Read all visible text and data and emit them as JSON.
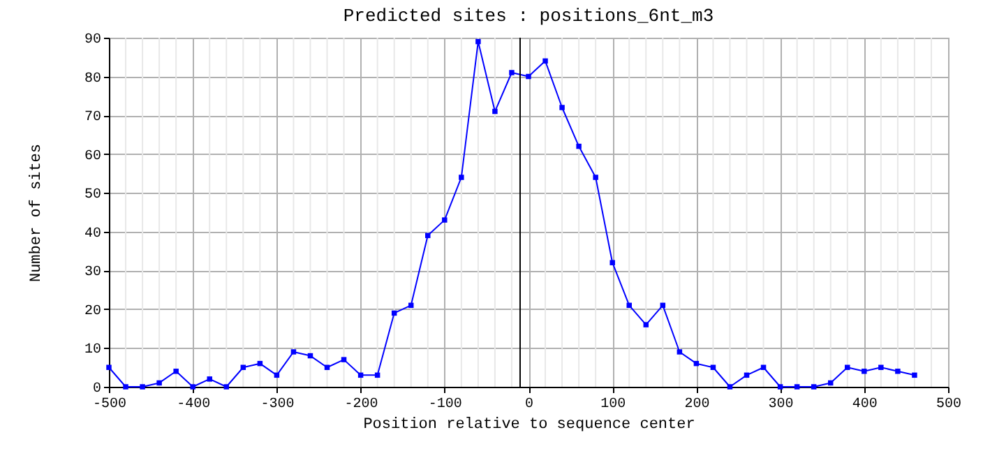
{
  "chart_data": {
    "type": "line",
    "title": "Predicted sites : positions_6nt_m3",
    "xlabel": "Position relative to sequence center",
    "ylabel": "Number of sites",
    "x": [
      -500,
      -480,
      -460,
      -440,
      -420,
      -400,
      -380,
      -360,
      -340,
      -320,
      -300,
      -280,
      -260,
      -240,
      -220,
      -200,
      -180,
      -160,
      -140,
      -120,
      -100,
      -80,
      -60,
      -40,
      -20,
      0,
      20,
      40,
      60,
      80,
      100,
      120,
      140,
      160,
      180,
      200,
      220,
      240,
      260,
      280,
      300,
      320,
      340,
      360,
      380,
      400,
      420,
      440,
      460
    ],
    "series": [
      {
        "color": "#0000ff",
        "values": [
          5,
          0,
          0,
          1,
          4,
          0,
          2,
          0,
          5,
          6,
          3,
          9,
          8,
          5,
          7,
          3,
          3,
          19,
          21,
          39,
          43,
          54,
          89,
          71,
          81,
          80,
          84,
          72,
          62,
          54,
          32,
          21,
          16,
          21,
          9,
          6,
          5,
          0,
          3,
          5,
          0,
          0,
          0,
          1,
          5,
          4,
          5,
          4,
          3
        ]
      }
    ],
    "xlim": [
      -500,
      500
    ],
    "ylim": [
      0,
      90
    ],
    "xticks": [
      -500,
      {
        "value": -480,
        "label": null
      },
      {
        "value": -460,
        "label": null
      },
      {
        "value": -440,
        "label": null
      },
      {
        "value": -420,
        "label": null
      },
      -400,
      {
        "value": -380,
        "label": null
      },
      {
        "value": -360,
        "label": null
      },
      {
        "value": -340,
        "label": null
      },
      {
        "value": -320,
        "label": null
      },
      -300,
      {
        "value": -280,
        "label": null
      },
      {
        "value": -260,
        "label": null
      },
      {
        "value": -240,
        "label": null
      },
      {
        "value": -220,
        "label": null
      },
      -200,
      {
        "value": -180,
        "label": null
      },
      {
        "value": -160,
        "label": null
      },
      {
        "value": -140,
        "label": null
      },
      {
        "value": -120,
        "label": null
      },
      -100,
      {
        "value": -80,
        "label": null
      },
      {
        "value": -60,
        "label": null
      },
      {
        "value": -40,
        "label": null
      },
      {
        "value": -20,
        "label": null
      },
      0,
      {
        "value": 20,
        "label": null
      },
      {
        "value": 40,
        "label": null
      },
      {
        "value": 60,
        "label": null
      },
      {
        "value": 80,
        "label": null
      },
      100,
      {
        "value": 120,
        "label": null
      },
      {
        "value": 140,
        "label": null
      },
      {
        "value": 160,
        "label": null
      },
      {
        "value": 180,
        "label": null
      },
      200,
      {
        "value": 220,
        "label": null
      },
      {
        "value": 240,
        "label": null
      },
      {
        "value": 260,
        "label": null
      },
      {
        "value": 280,
        "label": null
      },
      300,
      {
        "value": 320,
        "label": null
      },
      {
        "value": 340,
        "label": null
      },
      {
        "value": 360,
        "label": null
      },
      {
        "value": 380,
        "label": null
      },
      400,
      {
        "value": 420,
        "label": null
      },
      {
        "value": 440,
        "label": null
      },
      {
        "value": 460,
        "label": null
      },
      {
        "value": 480,
        "label": null
      },
      500
    ],
    "yticks": [
      0,
      10,
      20,
      30,
      40,
      50,
      60,
      70,
      80,
      90
    ],
    "ref_lines": [
      {
        "axis": "x",
        "value": -10,
        "color": "#000000"
      }
    ],
    "grid": true,
    "marker": "square",
    "line_style": "solid",
    "legend": false
  }
}
